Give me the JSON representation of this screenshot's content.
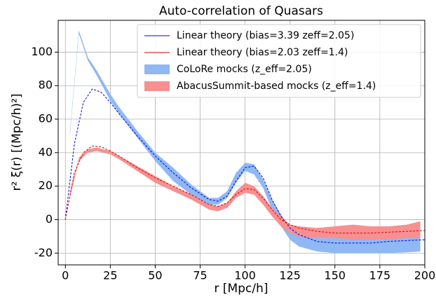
{
  "chart_data": {
    "type": "line",
    "title": "Auto-correlation of Quasars",
    "x_label": "r [Mpc/h]",
    "y_label": "r² ξ(r) [(Mpc/h)²]",
    "xlim": [
      -4,
      200
    ],
    "ylim": [
      -27,
      119
    ],
    "xticks": [
      0,
      25,
      50,
      75,
      100,
      125,
      150,
      175,
      200
    ],
    "yticks": [
      -20,
      0,
      20,
      40,
      60,
      80,
      100
    ],
    "grid": true,
    "legend": "upper right",
    "series": [
      {
        "name": "Linear theory (bias=3.39 zeff=2.05)",
        "color": "#0000dd",
        "style": "dashed",
        "x": [
          0,
          5,
          10,
          15,
          20,
          25,
          30,
          40,
          50,
          60,
          70,
          80,
          85,
          90,
          95,
          100,
          105,
          110,
          115,
          120,
          125,
          130,
          140,
          150,
          160,
          170,
          180,
          190,
          200
        ],
        "values": [
          0,
          45,
          70,
          78,
          76,
          70,
          63,
          50,
          38,
          28,
          19,
          12,
          11,
          14,
          23,
          31,
          32,
          25,
          12,
          2,
          -5,
          -9,
          -13,
          -14,
          -14,
          -14,
          -13,
          -12.5,
          -12
        ]
      },
      {
        "name": "Linear theory (bias=2.03 zeff=1.4)",
        "color": "#dd0000",
        "style": "dashed",
        "x": [
          0,
          5,
          10,
          15,
          20,
          25,
          30,
          40,
          50,
          60,
          70,
          80,
          85,
          90,
          95,
          100,
          105,
          110,
          115,
          120,
          125,
          130,
          140,
          150,
          160,
          170,
          180,
          190,
          200
        ],
        "values": [
          0,
          28,
          40,
          44,
          43.5,
          41,
          38,
          31,
          25,
          20,
          15,
          9,
          8,
          10,
          15,
          18.5,
          18,
          13,
          6,
          0,
          -3,
          -5,
          -7,
          -8,
          -8,
          -8,
          -7.5,
          -7,
          -6.5
        ]
      }
    ],
    "bands": [
      {
        "name": "CoLoRe mocks (z_eff=2.05)",
        "color": "#8fb8f5",
        "x": [
          2.5,
          7.5,
          12.5,
          17.5,
          25,
          30,
          40,
          50,
          60,
          70,
          80,
          85,
          90,
          95,
          100,
          105,
          110,
          115,
          120,
          125,
          130,
          140,
          150,
          160,
          170,
          180,
          190,
          197.5
        ],
        "lower": [
          50,
          111,
          95,
          86,
          71,
          63,
          49,
          35,
          23,
          15,
          9,
          9,
          13,
          22,
          29,
          27,
          19,
          6,
          -4,
          -12,
          -16,
          -19,
          -20,
          -20,
          -20,
          -20,
          -19.5,
          -19
        ],
        "upper": [
          52,
          113,
          97,
          89,
          75,
          67,
          53,
          40,
          31,
          21,
          13,
          13,
          17,
          28,
          34,
          33,
          24,
          12,
          3,
          -4,
          -8,
          -11,
          -11,
          -11,
          -11,
          -11,
          -11,
          -10
        ]
      },
      {
        "name": "AbacusSummit-based mocks (z_eff=1.4)",
        "color": "#f79090",
        "x": [
          2.5,
          7.5,
          12.5,
          17.5,
          25,
          30,
          40,
          50,
          60,
          70,
          80,
          85,
          90,
          95,
          100,
          105,
          110,
          115,
          120,
          125,
          130,
          140,
          150,
          160,
          170,
          180,
          190,
          197.5
        ],
        "lower": [
          13,
          35,
          40,
          41,
          39,
          36,
          29,
          22,
          17,
          12,
          6,
          5,
          7,
          13,
          16,
          15,
          9,
          2,
          -4,
          -8,
          -10,
          -11,
          -11,
          -12,
          -12,
          -12,
          -11,
          -11
        ],
        "upper": [
          16,
          37,
          42,
          43,
          41,
          38,
          32,
          26,
          20,
          15,
          9,
          8,
          10,
          17,
          22,
          20,
          14,
          7,
          2,
          -3,
          -4,
          -5,
          -4,
          -3,
          -4,
          -4,
          -3,
          -1
        ]
      }
    ]
  }
}
